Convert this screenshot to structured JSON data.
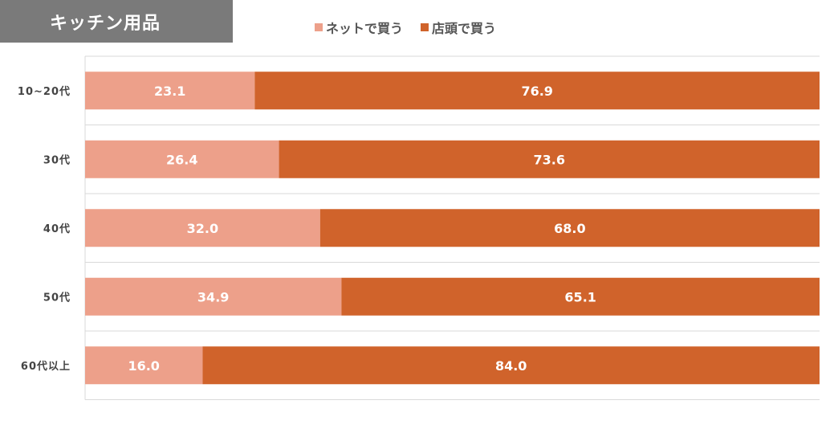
{
  "chart_data": {
    "type": "bar",
    "orientation": "horizontal",
    "stacked": true,
    "title": "キッチン用品",
    "categories": [
      "10~20代",
      "30代",
      "40代",
      "50代",
      "60代以上"
    ],
    "series": [
      {
        "name": "ネットで買う",
        "color": "#eda08a",
        "values": [
          23.1,
          26.4,
          32.0,
          34.9,
          16.0
        ]
      },
      {
        "name": "店頭で買う",
        "color": "#d0632b",
        "values": [
          76.9,
          73.6,
          68.0,
          65.1,
          84.0
        ]
      }
    ],
    "xlim": [
      0,
      100
    ],
    "legend_position": "top",
    "grid": "horizontal separators"
  }
}
